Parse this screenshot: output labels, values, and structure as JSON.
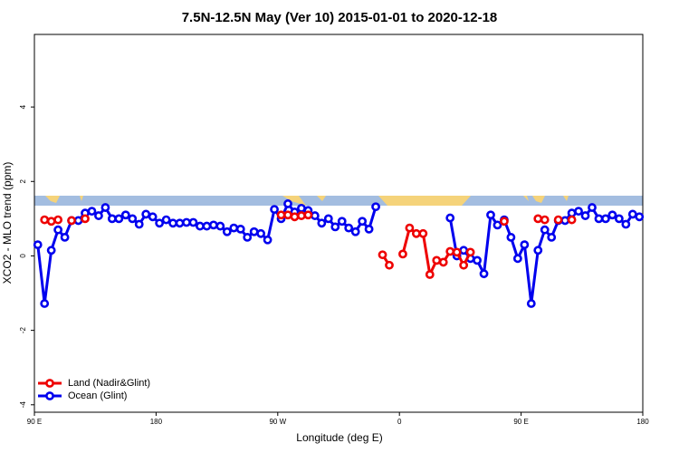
{
  "chart_data": {
    "type": "line",
    "title": "7.5N-12.5N May (Ver 10)   2015-01-01 to 2020-12-18",
    "x_label": "Longitude (deg E)",
    "y_label": "XCO2 - MLO trend (ppm)",
    "xlim": [
      90,
      540
    ],
    "ylim": [
      -4.2,
      5.95
    ],
    "xticks": [
      {
        "value": 90,
        "label": "90 E"
      },
      180,
      {
        "value": 270,
        "label": "90 W"
      },
      {
        "value": 360,
        "label": "0"
      },
      {
        "value": 450,
        "label": "90 E"
      },
      {
        "value": 540,
        "label": "180"
      }
    ],
    "yticks": [
      -4,
      -2,
      0,
      2,
      4
    ],
    "legend": "bottom-left",
    "x": [
      92.5,
      97.5,
      102.5,
      107.5,
      112.5,
      117.5,
      122.5,
      127.5,
      132.5,
      137.5,
      142.5,
      147.5,
      152.5,
      157.5,
      162.5,
      167.5,
      172.5,
      177.5,
      182.5,
      187.5,
      192.5,
      197.5,
      202.5,
      207.5,
      212.5,
      217.5,
      222.5,
      227.5,
      232.5,
      237.5,
      242.5,
      247.5,
      252.5,
      257.5,
      262.5,
      267.5,
      272.5,
      277.5,
      282.5,
      287.5,
      292.5,
      297.5,
      302.5,
      307.5,
      312.5,
      317.5,
      322.5,
      327.5,
      332.5,
      337.5,
      342.5,
      347.5,
      352.5,
      357.5,
      362.5,
      367.5,
      372.5,
      377.5,
      382.5,
      387.5,
      392.5,
      397.5,
      402.5,
      407.5,
      412.5,
      417.5,
      422.5,
      427.5,
      432.5,
      437.5,
      442.5,
      447.5,
      452.5,
      457.5,
      462.5,
      467.5,
      472.5,
      477.5,
      482.5,
      487.5,
      492.5,
      497.5,
      502.5,
      507.5,
      512.5,
      517.5,
      522.5,
      527.5,
      532.5,
      537.5
    ],
    "series": [
      {
        "name": "Ocean (Glint)",
        "color": "#0000ee",
        "values": [
          0.3,
          -1.28,
          0.15,
          0.7,
          0.5,
          0.95,
          0.95,
          1.15,
          1.2,
          1.08,
          1.3,
          1.0,
          1.0,
          1.1,
          1.0,
          0.85,
          1.12,
          1.05,
          0.88,
          0.97,
          0.88,
          0.88,
          0.9,
          0.9,
          0.8,
          0.8,
          0.83,
          0.8,
          0.65,
          0.75,
          0.72,
          0.5,
          0.65,
          0.6,
          0.43,
          1.25,
          1.0,
          1.4,
          1.18,
          1.28,
          1.22,
          1.08,
          0.88,
          1.0,
          0.78,
          0.93,
          0.75,
          0.65,
          0.93,
          0.72,
          1.32,
          null,
          null,
          null,
          null,
          null,
          null,
          null,
          null,
          null,
          null,
          1.02,
          0.0,
          0.15,
          -0.07,
          -0.12,
          -0.48,
          1.1,
          0.83,
          0.97,
          0.5,
          -0.07,
          0.3,
          -1.28,
          0.15,
          0.7,
          0.5,
          0.95,
          0.95,
          1.15,
          1.2,
          1.08,
          1.3,
          1.0,
          1.0,
          1.1,
          1.0,
          0.85,
          1.12,
          1.05
        ]
      },
      {
        "name": "Land (Nadir&Glint)",
        "color": "#ee0000",
        "values": [
          null,
          0.97,
          0.93,
          0.97,
          null,
          0.95,
          null,
          1.0,
          null,
          null,
          null,
          null,
          null,
          null,
          null,
          null,
          null,
          null,
          null,
          null,
          null,
          null,
          null,
          null,
          null,
          null,
          null,
          null,
          null,
          null,
          null,
          null,
          null,
          null,
          null,
          null,
          1.1,
          1.1,
          1.05,
          1.08,
          1.1,
          null,
          null,
          null,
          null,
          null,
          null,
          null,
          null,
          null,
          null,
          0.03,
          -0.25,
          null,
          0.05,
          0.75,
          0.6,
          0.6,
          -0.5,
          -0.12,
          -0.17,
          0.12,
          0.1,
          -0.25,
          0.1,
          null,
          null,
          null,
          null,
          0.93,
          null,
          null,
          null,
          null,
          1.0,
          0.97,
          null,
          0.97,
          null,
          0.97,
          null,
          null,
          null,
          null,
          null,
          null,
          null,
          null,
          null,
          null
        ]
      }
    ]
  }
}
